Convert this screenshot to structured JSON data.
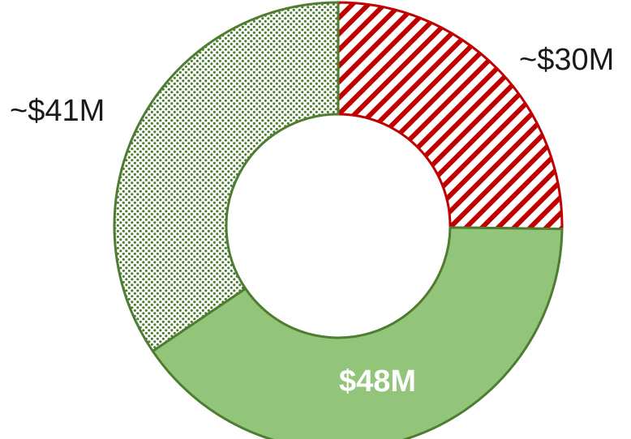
{
  "chart_data": {
    "type": "pie",
    "variant": "donut",
    "legend": "none",
    "slices": [
      {
        "label": "~$30M",
        "value": 30,
        "color": "#c00000",
        "fill": "diagonal-hatch",
        "label_position": "outside-top-right"
      },
      {
        "label": "$48M",
        "value": 48,
        "color": "#92c47a",
        "stroke": "#4e7d32",
        "fill": "solid",
        "label_position": "inside"
      },
      {
        "label": "~$41M",
        "value": 41,
        "color": "#4e7d32",
        "fill": "dotted",
        "label_position": "outside-top-left"
      }
    ]
  }
}
